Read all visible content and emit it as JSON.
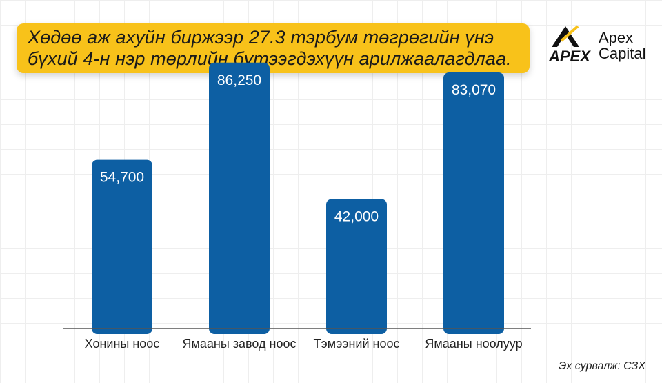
{
  "title": {
    "line1": "Хөдөө аж ахуйн биржээр 27.3 тэрбум төгрөгийн үнэ",
    "line2": "бүхий 4-н нэр төрлийн бүтээгдэхүүн  арилжаалагдлаа."
  },
  "logo": {
    "mark_text": "APEX",
    "name_line1": "Apex",
    "name_line2": "Capital"
  },
  "colors": {
    "bar": "#0d5fa3",
    "title_bg": "#f8c21a",
    "axis": "#555555"
  },
  "chart_data": {
    "type": "bar",
    "categories": [
      "Хонины ноос",
      "Ямааны завод ноос",
      "Тэмээний ноос",
      "Ямааны ноолуур"
    ],
    "values": [
      54700,
      86250,
      42000,
      83070
    ],
    "value_labels": [
      "54,700",
      "86,250",
      "42,000",
      "83,070"
    ],
    "ylim": [
      0,
      90000
    ],
    "grid": false,
    "legend": "none"
  },
  "source": "Эх сурвалж: СЗХ"
}
